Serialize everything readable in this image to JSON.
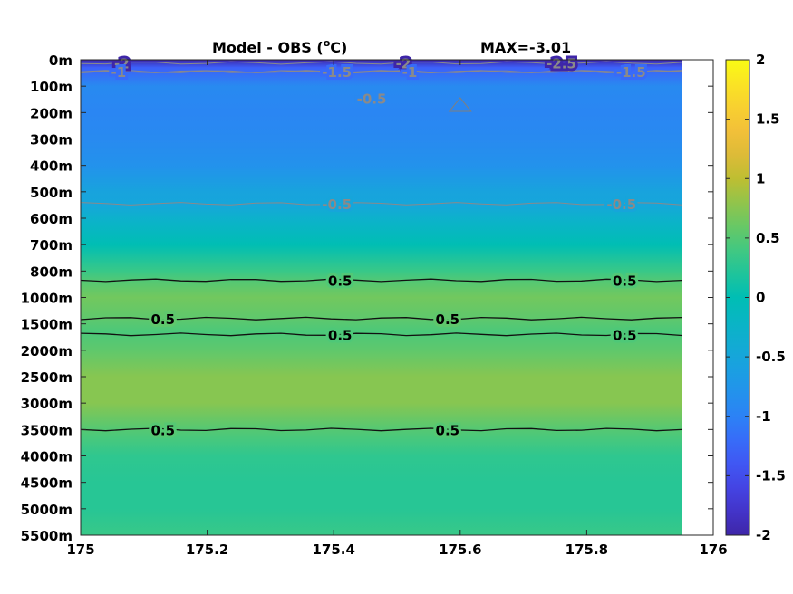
{
  "chart_data": {
    "type": "heatmap",
    "title": "Model - OBS (",
    "title_unit_sup": "o",
    "title_unit_tail": "C)",
    "max_label": "MAX=-3.01",
    "x_ticks": [
      "175",
      "175.2",
      "175.4",
      "175.6",
      "175.8",
      "176"
    ],
    "y_ticks": [
      "0m",
      "100m",
      "200m",
      "300m",
      "400m",
      "500m",
      "600m",
      "700m",
      "800m",
      "1000m",
      "1500m",
      "2000m",
      "2500m",
      "3000m",
      "3500m",
      "4000m",
      "4500m",
      "5000m",
      "5500m"
    ],
    "xlim": [
      175,
      176
    ],
    "data_x_max": 175.95,
    "colorbar": {
      "ticks": [
        "2",
        "1.5",
        "1",
        "0.5",
        "0",
        "-0.5",
        "-1",
        "-1.5",
        "-2"
      ],
      "clim": [
        -2,
        2
      ]
    },
    "depth_profile": [
      {
        "level": 0,
        "value": -2.6
      },
      {
        "level": 0.3,
        "value": -1.3
      },
      {
        "level": 1,
        "value": -0.9
      },
      {
        "level": 2,
        "value": -0.95
      },
      {
        "level": 3,
        "value": -0.9
      },
      {
        "level": 4,
        "value": -0.8
      },
      {
        "level": 5,
        "value": -0.55
      },
      {
        "level": 5.5,
        "value": -0.5
      },
      {
        "level": 6,
        "value": -0.3
      },
      {
        "level": 7,
        "value": 0.0
      },
      {
        "level": 8,
        "value": 0.35
      },
      {
        "level": 8.4,
        "value": 0.5
      },
      {
        "level": 9,
        "value": 0.65
      },
      {
        "level": 9.8,
        "value": 0.55
      },
      {
        "level": 10.3,
        "value": 0.45
      },
      {
        "level": 11,
        "value": 0.55
      },
      {
        "level": 12,
        "value": 0.75
      },
      {
        "level": 13,
        "value": 0.75
      },
      {
        "level": 14,
        "value": 0.5
      },
      {
        "level": 15,
        "value": 0.3
      },
      {
        "level": 16,
        "value": 0.25
      },
      {
        "level": 17,
        "value": 0.25
      },
      {
        "level": 18,
        "value": 0.35
      }
    ],
    "contours_black": [
      {
        "level": 8.35,
        "labels": [
          {
            "x": 175.41,
            "text": "0.5"
          },
          {
            "x": 175.86,
            "text": "0.5"
          }
        ]
      },
      {
        "level": 9.8,
        "labels": [
          {
            "x": 175.13,
            "text": "0.5"
          },
          {
            "x": 175.58,
            "text": "0.5"
          }
        ]
      },
      {
        "level": 10.4,
        "labels": [
          {
            "x": 175.41,
            "text": "0.5"
          },
          {
            "x": 175.86,
            "text": "0.5"
          }
        ]
      },
      {
        "level": 14.0,
        "labels": [
          {
            "x": 175.13,
            "text": "0.5"
          },
          {
            "x": 175.58,
            "text": "0.5"
          }
        ]
      }
    ],
    "contours_gray": [
      {
        "level": 0.12,
        "labels": [
          {
            "x": 175.065,
            "text": "-2"
          },
          {
            "x": 175.51,
            "text": "-2"
          },
          {
            "x": 175.76,
            "text": "-2.5"
          }
        ]
      },
      {
        "level": 0.45,
        "labels": [
          {
            "x": 175.06,
            "text": "-1"
          },
          {
            "x": 175.52,
            "text": "-1"
          }
        ]
      },
      {
        "level": 0.45,
        "labels": [
          {
            "x": 175.405,
            "text": "-1.5"
          },
          {
            "x": 175.87,
            "text": "-1.5"
          }
        ]
      },
      {
        "level": 5.45,
        "labels": [
          {
            "x": 175.405,
            "text": "-0.5"
          },
          {
            "x": 175.855,
            "text": "-0.5"
          }
        ]
      }
    ],
    "extra_gray_labels": [
      {
        "x": 175.46,
        "level": 1.45,
        "text": "-0.5"
      }
    ]
  }
}
